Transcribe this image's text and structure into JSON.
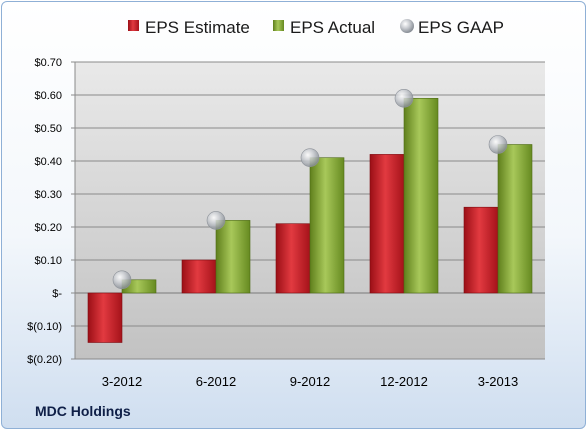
{
  "company_label": "MDC Holdings",
  "colors": {
    "estimate": "#c8161f",
    "actual": "#86ad2c",
    "gaap": "#a9aeb5",
    "plot_top": "#e8e8e8",
    "plot_bottom": "#c4c4c4"
  },
  "chart_data": {
    "type": "bar",
    "categories": [
      "3-2012",
      "6-2012",
      "9-2012",
      "12-2012",
      "3-2013"
    ],
    "series": [
      {
        "name": "EPS Estimate",
        "kind": "bar",
        "values": [
          -0.15,
          0.1,
          0.21,
          0.42,
          0.26
        ]
      },
      {
        "name": "EPS Actual",
        "kind": "bar",
        "values": [
          0.04,
          0.22,
          0.41,
          0.59,
          0.45
        ]
      },
      {
        "name": "EPS GAAP",
        "kind": "marker",
        "values": [
          0.04,
          0.22,
          0.41,
          0.59,
          0.45
        ]
      }
    ],
    "ylim": [
      -0.2,
      0.7
    ],
    "yticks": [
      0.7,
      0.6,
      0.5,
      0.4,
      0.3,
      0.2,
      0.1,
      0,
      -0.1,
      -0.2
    ],
    "ytick_labels": [
      "$0.70",
      "$0.60",
      "$0.50",
      "$0.40",
      "$0.30",
      "$0.20",
      "$0.10",
      "$-",
      "$(0.10)",
      "$(0.20)"
    ],
    "grid": true,
    "legend_position": "top"
  }
}
